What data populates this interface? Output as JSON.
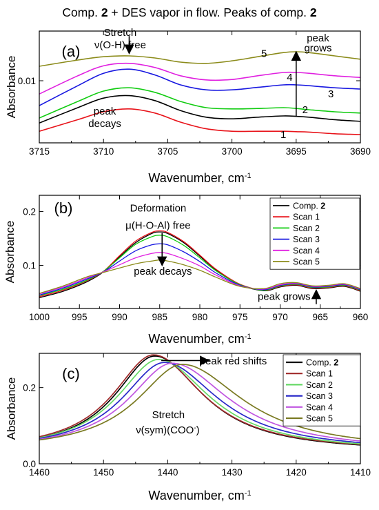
{
  "title": {
    "prefix": "Comp. ",
    "num1": "2",
    "middle": " + DES vapor in flow. Peaks of comp. ",
    "num2": "2"
  },
  "colors": {
    "comp2": "#000000",
    "scan1": "#e8131a",
    "scan2": "#11cc11",
    "scan3": "#1818e0",
    "scan4": "#e020e0",
    "scan5": "#8b8b1a",
    "c_comp2": "#000000",
    "c_scan1": "#a02a2a",
    "c_scan2": "#66d966",
    "c_scan3": "#2828c8",
    "c_scan4": "#c055e0",
    "c_scan5": "#7a7a22"
  },
  "chart_data": [
    {
      "type": "line",
      "panel_label": "(a)",
      "xlabel": "Wavenumber, cm",
      "xlabel_sup": "-1",
      "ylabel": "Absorbance",
      "xlim": [
        3715,
        3690
      ],
      "xticks": [
        3715,
        3710,
        3705,
        3700,
        3695,
        3690
      ],
      "ylim": [
        0.0085,
        0.0112
      ],
      "yticks": [
        0.01
      ],
      "ytick_labels": [
        "0.01"
      ],
      "x": [
        3715,
        3712,
        3710,
        3708,
        3706,
        3704,
        3702,
        3700,
        3698,
        3696,
        3695,
        3694,
        3692,
        3690
      ],
      "series": [
        {
          "key": "comp2",
          "values": [
            0.00898,
            0.00935,
            0.00958,
            0.00964,
            0.00952,
            0.00928,
            0.00912,
            0.00908,
            0.00912,
            0.00915,
            0.00914,
            0.00912,
            0.00906,
            0.00902
          ]
        },
        {
          "key": "scan1",
          "values": [
            0.00878,
            0.00906,
            0.00925,
            0.00932,
            0.00922,
            0.009,
            0.00884,
            0.00878,
            0.00878,
            0.00878,
            0.00877,
            0.00876,
            0.00872,
            0.0087
          ]
        },
        {
          "key": "scan2",
          "values": [
            0.0091,
            0.0095,
            0.00975,
            0.00983,
            0.00972,
            0.0095,
            0.00935,
            0.00932,
            0.00933,
            0.00935,
            0.00933,
            0.0093,
            0.00925,
            0.00922
          ]
        },
        {
          "key": "scan3",
          "values": [
            0.0094,
            0.00988,
            0.01018,
            0.01028,
            0.01014,
            0.0099,
            0.00978,
            0.00978,
            0.00984,
            0.0099,
            0.0099,
            0.00988,
            0.00983,
            0.0098
          ]
        },
        {
          "key": "scan4",
          "values": [
            0.00968,
            0.01012,
            0.01036,
            0.01042,
            0.01032,
            0.01012,
            0.01002,
            0.01003,
            0.01012,
            0.0102,
            0.0102,
            0.01018,
            0.01012,
            0.01008
          ]
        },
        {
          "key": "scan5",
          "values": [
            0.01035,
            0.0105,
            0.01058,
            0.0106,
            0.01055,
            0.01045,
            0.01042,
            0.01048,
            0.01058,
            0.01068,
            0.0107,
            0.01068,
            0.0106,
            0.01052
          ]
        }
      ],
      "curve_labels": [
        {
          "text": "1",
          "x": 3696.0,
          "y": 0.0087
        },
        {
          "text": "2",
          "x": 3694.3,
          "y": 0.0093
        },
        {
          "text": "3",
          "x": 3692.3,
          "y": 0.00968
        },
        {
          "text": "4",
          "x": 3695.5,
          "y": 0.01008
        },
        {
          "text": "5",
          "x": 3697.5,
          "y": 0.01066
        }
      ],
      "annotations": [
        {
          "text": "Stretch",
          "x": 3708.7,
          "y": 0.01108
        },
        {
          "text": "ν(O-H) free",
          "x": 3708.7,
          "y": 0.01078
        },
        {
          "text": "peak",
          "x": 3709.9,
          "y": 0.00918
        },
        {
          "text": "decays",
          "x": 3709.9,
          "y": 0.00888
        },
        {
          "text": "peak",
          "x": 3693.3,
          "y": 0.01095
        },
        {
          "text": "grows",
          "x": 3693.3,
          "y": 0.01071
        }
      ],
      "arrows": [
        {
          "x1": 3708.0,
          "y1": 0.01108,
          "x2": 3708.0,
          "y2": 0.01066
        },
        {
          "x1": 3695.0,
          "y1": 0.00915,
          "x2": 3695.0,
          "y2": 0.0107
        }
      ]
    },
    {
      "type": "line",
      "panel_label": "(b)",
      "xlabel": "Wavenumber, cm",
      "xlabel_sup": "-1",
      "ylabel": "Absorbance",
      "xlim": [
        1000,
        960
      ],
      "xticks": [
        1000,
        995,
        990,
        985,
        980,
        975,
        970,
        965,
        960
      ],
      "ylim": [
        0.02,
        0.23
      ],
      "yticks": [
        0.1,
        0.2
      ],
      "ytick_labels": [
        "0.1",
        "0.2"
      ],
      "x": [
        1000,
        997,
        994,
        992,
        990,
        988,
        986,
        985,
        984,
        982,
        980,
        978,
        975,
        972,
        970,
        968,
        966,
        964,
        962,
        960
      ],
      "series": [
        {
          "key": "comp2",
          "values": [
            0.04,
            0.052,
            0.07,
            0.088,
            0.116,
            0.142,
            0.159,
            0.162,
            0.159,
            0.142,
            0.117,
            0.092,
            0.064,
            0.053,
            0.06,
            0.063,
            0.057,
            0.058,
            0.061,
            0.052
          ]
        },
        {
          "key": "scan1",
          "values": [
            0.042,
            0.054,
            0.072,
            0.089,
            0.118,
            0.145,
            0.161,
            0.164,
            0.161,
            0.144,
            0.119,
            0.093,
            0.065,
            0.054,
            0.061,
            0.064,
            0.058,
            0.059,
            0.062,
            0.053
          ]
        },
        {
          "key": "scan2",
          "values": [
            0.044,
            0.056,
            0.073,
            0.089,
            0.114,
            0.139,
            0.153,
            0.156,
            0.153,
            0.137,
            0.114,
            0.09,
            0.064,
            0.054,
            0.062,
            0.065,
            0.059,
            0.06,
            0.063,
            0.054
          ]
        },
        {
          "key": "scan3",
          "values": [
            0.045,
            0.058,
            0.075,
            0.088,
            0.108,
            0.127,
            0.138,
            0.14,
            0.138,
            0.125,
            0.107,
            0.086,
            0.063,
            0.055,
            0.063,
            0.066,
            0.06,
            0.061,
            0.064,
            0.055
          ]
        },
        {
          "key": "scan4",
          "values": [
            0.047,
            0.06,
            0.077,
            0.088,
            0.101,
            0.114,
            0.122,
            0.124,
            0.122,
            0.112,
            0.099,
            0.082,
            0.062,
            0.056,
            0.064,
            0.067,
            0.061,
            0.062,
            0.065,
            0.056
          ]
        },
        {
          "key": "scan5",
          "values": [
            0.048,
            0.062,
            0.079,
            0.087,
            0.095,
            0.103,
            0.108,
            0.11,
            0.108,
            0.101,
            0.091,
            0.078,
            0.061,
            0.057,
            0.066,
            0.068,
            0.062,
            0.063,
            0.066,
            0.057
          ]
        }
      ],
      "legend": {
        "placement": "top-right",
        "entries": [
          {
            "key": "comp2",
            "label": "Comp. ",
            "bold": "2"
          },
          {
            "key": "scan1",
            "label": "Scan 1",
            "bold": ""
          },
          {
            "key": "scan2",
            "label": "Scan 2",
            "bold": ""
          },
          {
            "key": "scan3",
            "label": "Scan 3",
            "bold": ""
          },
          {
            "key": "scan4",
            "label": "Scan 4",
            "bold": ""
          },
          {
            "key": "scan5",
            "label": "Scan 5",
            "bold": ""
          }
        ]
      },
      "annotations": [
        {
          "text": "Deformation",
          "x": 985.2,
          "y": 0.2
        },
        {
          "text": "μ(H-O-Al) free",
          "x": 985.2,
          "y": 0.168
        },
        {
          "text": "peak decays",
          "x": 984.6,
          "y": 0.083
        },
        {
          "text": "peak grows",
          "x": 969.5,
          "y": 0.036
        }
      ],
      "arrows": [
        {
          "x1": 984.7,
          "y1": 0.16,
          "x2": 984.7,
          "y2": 0.1
        },
        {
          "x1": 965.5,
          "y1": 0.028,
          "x2": 965.5,
          "y2": 0.054
        }
      ]
    },
    {
      "type": "line",
      "panel_label": "(c)",
      "xlabel": "Wavenumber, cm",
      "xlabel_sup": "-1",
      "ylabel": "Absorbance",
      "xlim": [
        1460,
        1410
      ],
      "xticks": [
        1460,
        1450,
        1440,
        1430,
        1420,
        1410
      ],
      "ylim": [
        0.0,
        0.29
      ],
      "yticks": [
        0.0,
        0.2
      ],
      "ytick_labels": [
        "0.0",
        "0.2"
      ],
      "series": [
        {
          "key": "comp2",
          "center": 1442.0,
          "amp": 0.253,
          "wl": 7.6,
          "wr": 9.2,
          "base": 0.03
        },
        {
          "key": "scan1",
          "center": 1442.2,
          "amp": 0.255,
          "wl": 7.7,
          "wr": 9.3,
          "base": 0.031
        },
        {
          "key": "scan2",
          "center": 1441.4,
          "amp": 0.243,
          "wl": 7.9,
          "wr": 9.7,
          "base": 0.031
        },
        {
          "key": "scan3",
          "center": 1440.5,
          "amp": 0.234,
          "wl": 8.1,
          "wr": 10.2,
          "base": 0.032
        },
        {
          "key": "scan4",
          "center": 1439.3,
          "amp": 0.232,
          "wl": 8.3,
          "wr": 10.8,
          "base": 0.032
        },
        {
          "key": "scan5",
          "center": 1437.7,
          "amp": 0.228,
          "wl": 8.6,
          "wr": 11.4,
          "base": 0.033
        }
      ],
      "legend": {
        "placement": "top-right",
        "entries": [
          {
            "key": "c_comp2",
            "label": "Comp. ",
            "bold": "2"
          },
          {
            "key": "c_scan1",
            "label": "Scan 1",
            "bold": ""
          },
          {
            "key": "c_scan2",
            "label": "Scan 2",
            "bold": ""
          },
          {
            "key": "c_scan3",
            "label": "Scan 3",
            "bold": ""
          },
          {
            "key": "c_scan4",
            "label": "Scan 4",
            "bold": ""
          },
          {
            "key": "c_scan5",
            "label": "Scan 5",
            "bold": ""
          }
        ]
      },
      "annotations": [
        {
          "text": "peak red shifts",
          "x": 1429.8,
          "y": 0.261
        },
        {
          "text": "Stretch",
          "x": 1439.9,
          "y": 0.12
        },
        {
          "text": "ν(sym)(COO",
          "x": 1440.0,
          "y": 0.08
        }
      ],
      "annotation_sup": "-",
      "annotation_close": ")",
      "arrows": [
        {
          "x1": 1441.0,
          "y1": 0.271,
          "x2": 1433.6,
          "y2": 0.271
        }
      ]
    }
  ]
}
